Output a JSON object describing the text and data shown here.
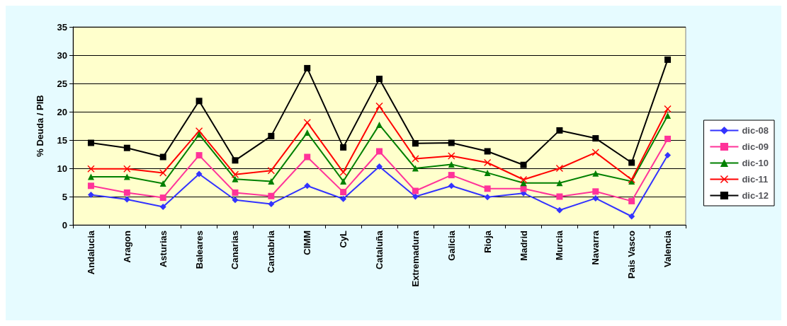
{
  "chart_data": {
    "type": "line",
    "ylabel": "% Deuda / PIB",
    "categories": [
      "Andalucia",
      "Aragon",
      "Asturias",
      "Baleares",
      "Canarias",
      "Cantabria",
      "CIMM",
      "CyL",
      "Cataluña",
      "Extremadura",
      "Galicia",
      "Rioja",
      "Madrid",
      "Murcia",
      "Navarra",
      "Pais Vasco",
      "Valencia"
    ],
    "series": [
      {
        "name": "dic-08",
        "color": "#3333ff",
        "marker": "diamond",
        "values": [
          5.3,
          4.5,
          3.2,
          9,
          4.4,
          3.7,
          6.9,
          4.6,
          10.3,
          5,
          6.9,
          4.9,
          5.6,
          2.6,
          4.7,
          1.5,
          12.3
        ]
      },
      {
        "name": "dic-09",
        "color": "#ff3399",
        "marker": "square",
        "values": [
          6.9,
          5.7,
          4.8,
          12.3,
          5.7,
          5.1,
          12,
          5.8,
          13,
          6,
          8.8,
          6.4,
          6.4,
          5,
          5.9,
          4.2,
          15.2
        ]
      },
      {
        "name": "dic-10",
        "color": "#008000",
        "marker": "triangle",
        "values": [
          8.5,
          8.5,
          7.3,
          16,
          8.1,
          7.7,
          16.3,
          7.7,
          17.7,
          10,
          10.7,
          9.2,
          7.4,
          7.4,
          9.1,
          7.7,
          19.3
        ]
      },
      {
        "name": "dic-11",
        "color": "#ff0000",
        "marker": "cross",
        "values": [
          9.9,
          9.9,
          9.2,
          16.6,
          8.9,
          9.6,
          18.1,
          9.3,
          21,
          11.7,
          12.2,
          11,
          8,
          10,
          12.8,
          8,
          20.5
        ]
      },
      {
        "name": "dic-12",
        "color": "#000000",
        "marker": "square",
        "values": [
          14.5,
          13.6,
          12,
          21.9,
          11.4,
          15.7,
          27.7,
          13.7,
          25.8,
          14.4,
          14.5,
          13,
          10.6,
          16.7,
          15.3,
          11,
          29.2
        ]
      }
    ],
    "ylim": [
      0,
      35
    ],
    "yticks": [
      0,
      5,
      10,
      15,
      20,
      25,
      30,
      35
    ],
    "grid": "y",
    "legend": "right"
  }
}
